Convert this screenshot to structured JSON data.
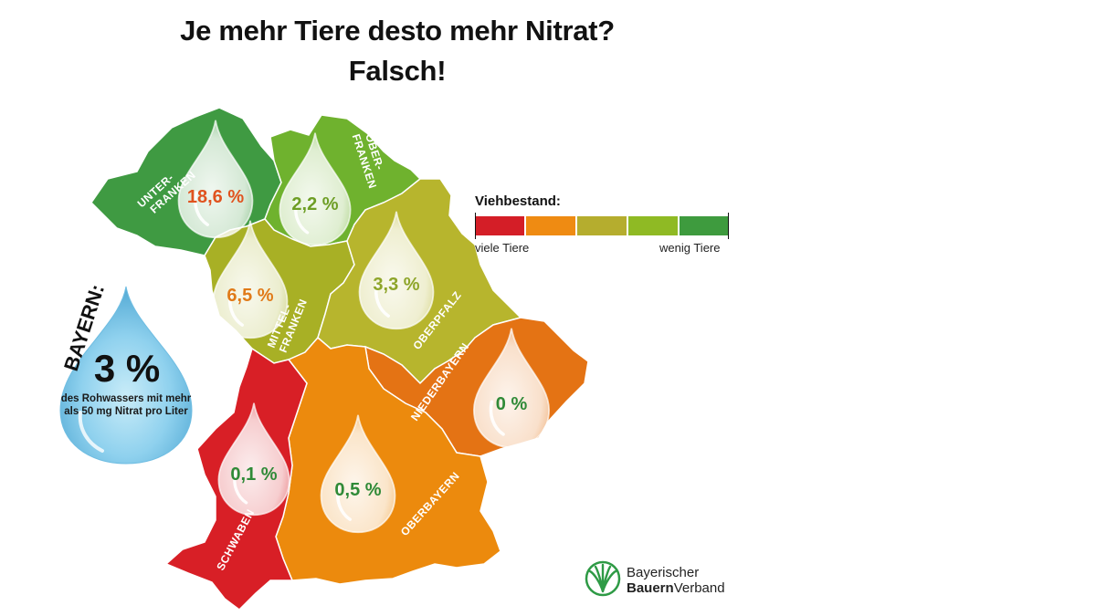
{
  "title": {
    "line1": "Je mehr Tiere desto mehr Nitrat?",
    "line2": "Falsch!"
  },
  "regions": [
    {
      "name": "Unterfranken",
      "label": [
        "UNTER-",
        "FRANKEN"
      ],
      "value": "18,6 %",
      "color": "#3f9a42",
      "value_color": "#e0531f"
    },
    {
      "name": "Oberfranken",
      "label": [
        "OBER-",
        "FRANKEN"
      ],
      "value": "2,2 %",
      "color": "#6fb22e",
      "value_color": "#6e9e25"
    },
    {
      "name": "Mittelfranken",
      "label": [
        "MITTEL-",
        "FRANKEN"
      ],
      "value": "6,5 %",
      "color": "#a8b025",
      "value_color": "#e07a18"
    },
    {
      "name": "Oberpfalz",
      "label": [
        "OBERPFALZ"
      ],
      "value": "3,3 %",
      "color": "#b7b52d",
      "value_color": "#8ea52a"
    },
    {
      "name": "Niederbayern",
      "label": [
        "NIEDERBAYERN"
      ],
      "value": "0 %",
      "color": "#e47314",
      "value_color": "#2f8a37"
    },
    {
      "name": "Oberbayern",
      "label": [
        "OBERBAYERN"
      ],
      "value": "0,5 %",
      "color": "#ec8a0d",
      "value_color": "#2f8a37"
    },
    {
      "name": "Schwaben",
      "label": [
        "SCHWABEN"
      ],
      "value": "0,1 %",
      "color": "#d81f26",
      "value_color": "#2f8a37"
    }
  ],
  "legend": {
    "title": "Viehbestand:",
    "low_label": "viele Tiere",
    "high_label": "wenig Tiere",
    "colors": [
      "#d41e27",
      "#ef8b12",
      "#b5ad2e",
      "#8fba24",
      "#3e9b3e"
    ]
  },
  "bayern": {
    "label": "BAYERN:",
    "value": "3 %",
    "description": "des Rohwassers mit mehr als 50 mg Nitrat pro Liter"
  },
  "logo": {
    "line1": "Bayerischer",
    "line2_bold": "Bauern",
    "line2_regular": "Verband",
    "icon": "wheat-leaf-icon"
  }
}
